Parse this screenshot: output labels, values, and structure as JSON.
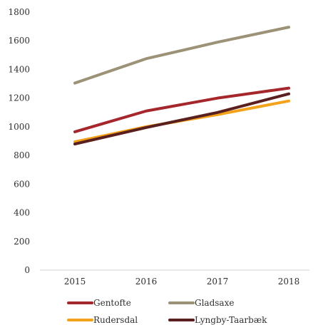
{
  "chart_data": {
    "type": "line",
    "x": [
      "2015",
      "2016",
      "2017",
      "2018"
    ],
    "ylim": [
      0,
      1800
    ],
    "y_ticks": [
      0,
      200,
      400,
      600,
      800,
      1000,
      1200,
      1400,
      1600,
      1800
    ],
    "grid": false,
    "legend_position": "bottom",
    "series": [
      {
        "name": "Gentofte",
        "color": "#A6272B",
        "values": [
          965,
          1110,
          1200,
          1270
        ]
      },
      {
        "name": "Gladsaxe",
        "color": "#9C9277",
        "values": [
          1305,
          1475,
          1590,
          1695
        ]
      },
      {
        "name": "Rudersdal",
        "color": "#F2A31B",
        "values": [
          895,
          1000,
          1085,
          1180
        ]
      },
      {
        "name": "Lyngby-Taarbæk",
        "color": "#5A1F1F",
        "values": [
          880,
          995,
          1100,
          1230
        ]
      }
    ]
  }
}
